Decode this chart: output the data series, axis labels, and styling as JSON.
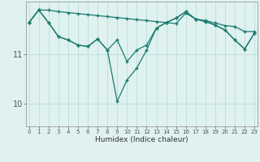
{
  "x": [
    0,
    1,
    2,
    3,
    4,
    5,
    6,
    7,
    8,
    9,
    10,
    11,
    12,
    13,
    14,
    15,
    16,
    17,
    18,
    19,
    20,
    21,
    22,
    23
  ],
  "line1": [
    11.63,
    11.88,
    11.88,
    11.85,
    11.83,
    11.81,
    11.79,
    11.77,
    11.75,
    11.73,
    11.71,
    11.69,
    11.67,
    11.65,
    11.63,
    11.61,
    11.82,
    11.7,
    11.67,
    11.62,
    11.57,
    11.55,
    11.45,
    11.45
  ],
  "line2": [
    11.63,
    11.88,
    11.63,
    11.35,
    11.28,
    11.18,
    11.15,
    11.3,
    11.08,
    11.28,
    10.85,
    11.08,
    11.18,
    11.52,
    11.63,
    11.72,
    11.85,
    11.7,
    11.65,
    11.58,
    11.48,
    11.28,
    11.1,
    11.42
  ],
  "line3": [
    11.63,
    11.88,
    11.63,
    11.35,
    11.28,
    11.18,
    11.15,
    11.3,
    11.08,
    10.05,
    10.48,
    10.72,
    11.08,
    11.52,
    11.63,
    11.72,
    11.85,
    11.7,
    11.65,
    11.58,
    11.48,
    11.28,
    11.1,
    11.42
  ],
  "bg_color": "#dff2f0",
  "line_color": "#1a7a6e",
  "grid_color": "#b8deda",
  "xlabel": "Humidex (Indice chaleur)",
  "ytick_labels": [
    "10",
    "11"
  ],
  "ytick_vals": [
    10,
    11
  ],
  "ylim": [
    9.55,
    12.05
  ],
  "xlim": [
    -0.3,
    23.3
  ],
  "xtick_labels": [
    "0",
    "1",
    "2",
    "3",
    "4",
    "5",
    "6",
    "7",
    "8",
    "9",
    "10",
    "11",
    "12",
    "13",
    "14",
    "15",
    "16",
    "17",
    "18",
    "19",
    "20",
    "21",
    "22",
    "23"
  ]
}
